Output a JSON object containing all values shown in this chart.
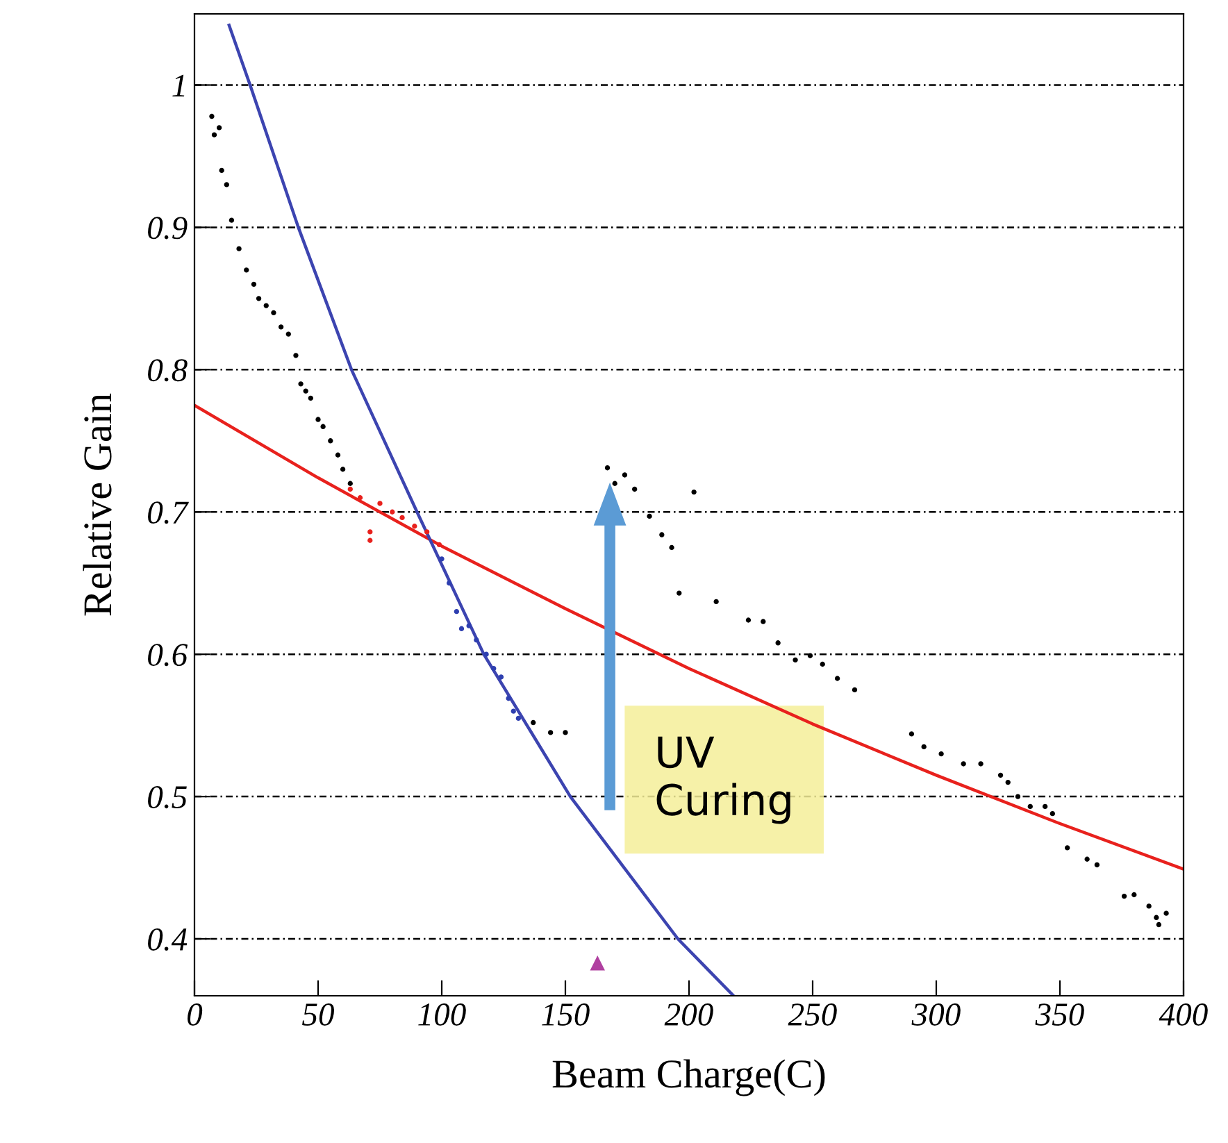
{
  "chart_data": {
    "type": "scatter",
    "xlabel": "Beam Charge(C)",
    "ylabel": "Relative Gain",
    "xlim": [
      0,
      400
    ],
    "ylim": [
      0.36,
      1.05
    ],
    "xticks": [
      0,
      50,
      100,
      150,
      200,
      250,
      300,
      350,
      400
    ],
    "yticks": [
      0.4,
      0.5,
      0.6,
      0.7,
      0.8,
      0.9,
      1
    ],
    "grid": "y",
    "marker": "circle",
    "annotations": [
      "UV\nCuring"
    ],
    "series": [
      {
        "color": "#000000",
        "x": [
          7,
          8,
          10,
          11,
          13,
          15,
          18,
          21,
          24,
          26,
          29,
          32,
          35,
          38,
          41,
          43,
          45,
          47,
          50,
          52,
          55,
          58,
          60,
          63
        ],
        "values": [
          0.978,
          0.965,
          0.97,
          0.94,
          0.93,
          0.905,
          0.885,
          0.87,
          0.86,
          0.85,
          0.845,
          0.84,
          0.83,
          0.825,
          0.81,
          0.79,
          0.785,
          0.78,
          0.765,
          0.76,
          0.75,
          0.74,
          0.73,
          0.72
        ]
      },
      {
        "color": "#e8211d",
        "x": [
          63,
          67,
          71,
          71,
          75,
          80,
          84,
          89,
          94,
          99
        ],
        "values": [
          0.716,
          0.71,
          0.686,
          0.68,
          0.706,
          0.7,
          0.696,
          0.69,
          0.686,
          0.677
        ]
      },
      {
        "color": "#2e3fb0",
        "x": [
          100,
          103,
          106,
          108,
          111,
          114,
          118,
          121,
          124,
          127,
          129,
          131
        ],
        "values": [
          0.667,
          0.65,
          0.63,
          0.618,
          0.62,
          0.61,
          0.6,
          0.59,
          0.584,
          0.569,
          0.56,
          0.555
        ]
      },
      {
        "color": "#000000",
        "x": [
          137,
          144,
          150,
          167,
          170,
          174,
          178,
          184,
          189,
          193,
          196,
          202,
          211,
          224,
          230,
          236,
          243,
          249,
          254,
          260,
          267,
          290,
          295,
          302,
          311,
          318,
          326,
          329,
          333,
          338,
          344,
          347,
          353,
          361,
          365,
          376,
          380,
          386,
          389,
          390,
          393
        ],
        "values": [
          0.552,
          0.545,
          0.545,
          0.731,
          0.72,
          0.726,
          0.716,
          0.697,
          0.684,
          0.675,
          0.643,
          0.714,
          0.637,
          0.624,
          0.623,
          0.608,
          0.596,
          0.599,
          0.593,
          0.583,
          0.575,
          0.544,
          0.535,
          0.53,
          0.523,
          0.523,
          0.515,
          0.51,
          0.5,
          0.493,
          0.493,
          0.488,
          0.464,
          0.456,
          0.452,
          0.43,
          0.431,
          0.423,
          0.415,
          0.41,
          0.418
        ]
      },
      {
        "color": "#b040a0",
        "marker": "triangle",
        "x": [
          163
        ],
        "values": [
          0.383
        ]
      },
      {
        "type": "line",
        "marker": "none",
        "color": "#e8211d",
        "x": [
          0,
          50,
          100,
          150,
          200,
          250,
          300,
          350,
          400
        ],
        "values": [
          0.775,
          0.724,
          0.676,
          0.632,
          0.59,
          0.551,
          0.515,
          0.481,
          0.449
        ]
      },
      {
        "type": "line",
        "marker": "none",
        "color": "#3c44b0",
        "x": [
          14,
          22.5,
          42,
          63.5,
          90,
          117,
          152,
          195.5,
          218
        ],
        "values": [
          1.042,
          1.0,
          0.9,
          0.8,
          0.7,
          0.6,
          0.5,
          0.4,
          0.36
        ]
      }
    ]
  }
}
